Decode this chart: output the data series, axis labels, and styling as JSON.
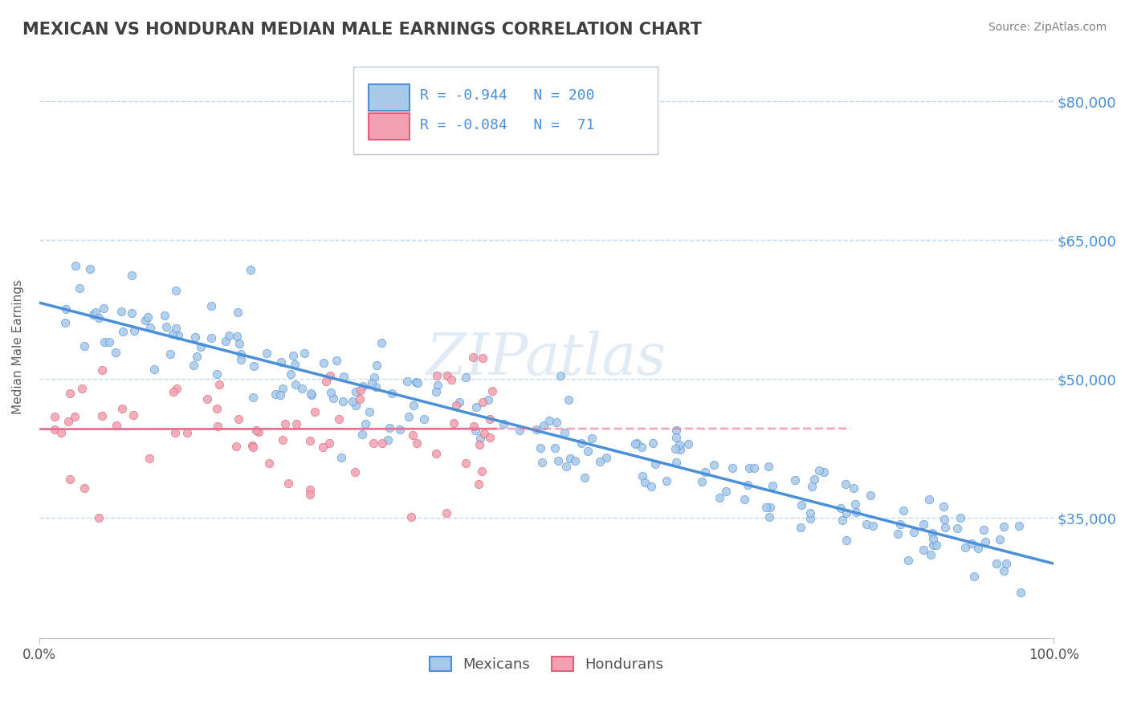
{
  "title": "MEXICAN VS HONDURAN MEDIAN MALE EARNINGS CORRELATION CHART",
  "source": "Source: ZipAtlas.com",
  "ylabel": "Median Male Earnings",
  "xlim": [
    0.0,
    1.0
  ],
  "ylim": [
    22000,
    85000
  ],
  "yticks": [
    35000,
    50000,
    65000,
    80000
  ],
  "ytick_labels": [
    "$35,000",
    "$50,000",
    "$65,000",
    "$80,000"
  ],
  "xtick_labels": [
    "0.0%",
    "100.0%"
  ],
  "mexican_color": "#a8c8e8",
  "honduran_color": "#f4a0b0",
  "mexican_line_color": "#4a90d9",
  "honduran_line_color": "#e87090",
  "r_mexican": -0.944,
  "n_mexican": 200,
  "r_honduran": -0.084,
  "n_honduran": 71,
  "background_color": "#ffffff",
  "grid_color": "#c8d8e8",
  "title_color": "#404040",
  "label_color": "#4a90d9",
  "source_color": "#808080"
}
